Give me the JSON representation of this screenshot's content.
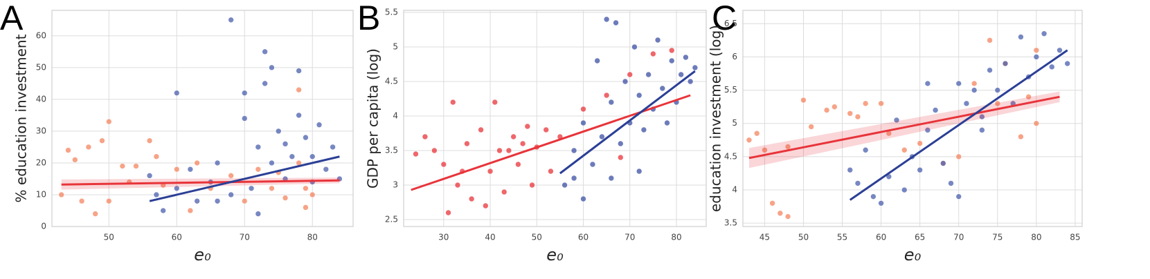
{
  "chart_data": [
    {
      "type": "scatter",
      "panel": "A",
      "xlabel": "e₀",
      "ylabel": "% education investment",
      "xlim": [
        41.6,
        86
      ],
      "xticks": [
        50,
        60,
        70,
        80
      ],
      "ylim": [
        0,
        68
      ],
      "yticks": [
        0,
        10,
        20,
        30,
        40,
        50,
        60
      ],
      "grid": true,
      "series": [
        {
          "color": "#f4845f",
          "x": [
            43,
            44,
            45,
            46,
            47,
            48,
            49,
            50,
            50,
            52,
            53,
            54,
            56,
            57,
            58,
            60,
            62,
            63,
            65,
            68,
            70,
            72,
            74,
            76,
            78,
            79,
            79,
            80,
            78,
            75
          ],
          "values": [
            10,
            24,
            21,
            8,
            25,
            4,
            27,
            33,
            8,
            19,
            14,
            19,
            27,
            22,
            13,
            18,
            5,
            20,
            12,
            16,
            8,
            18,
            12,
            9,
            43,
            6,
            12,
            10,
            20,
            17
          ]
        },
        {
          "color": "#4a5fae",
          "x": [
            56,
            57,
            58,
            60,
            60,
            62,
            63,
            65,
            66,
            68,
            68,
            70,
            70,
            71,
            72,
            73,
            73,
            74,
            74,
            75,
            76,
            77,
            78,
            78,
            79,
            80,
            81,
            82,
            83,
            84,
            66,
            72,
            76,
            80
          ],
          "values": [
            16,
            10,
            5,
            42,
            12,
            18,
            8,
            14,
            20,
            65,
            10,
            34,
            42,
            12,
            25,
            55,
            45,
            50,
            20,
            30,
            15,
            22,
            49,
            35,
            28,
            22,
            32,
            18,
            25,
            15,
            8,
            4,
            26,
            14
          ]
        }
      ],
      "fits": [
        {
          "color": "#e8343a",
          "x": [
            43,
            84
          ],
          "values": [
            13.2,
            14.5
          ],
          "lower": [
            11.6,
            13.6
          ],
          "upper": [
            14.8,
            15.4
          ]
        },
        {
          "color": "#2b3f96",
          "x": [
            56,
            84
          ],
          "values": [
            8,
            22
          ]
        }
      ]
    },
    {
      "type": "scatter",
      "panel": "B",
      "xlabel": "e₀",
      "ylabel": "GDP per capita (log)",
      "xlim": [
        21.4,
        86.4
      ],
      "xticks": [
        30,
        40,
        50,
        60,
        70,
        80
      ],
      "ylim": [
        2.4,
        5.53
      ],
      "yticks": [
        2.5,
        3.0,
        3.5,
        4.0,
        4.5,
        5.0,
        5.5
      ],
      "grid": true,
      "series": [
        {
          "color": "#e8343a",
          "x": [
            24,
            26,
            28,
            30,
            31,
            32,
            33,
            35,
            36,
            38,
            40,
            41,
            42,
            43,
            45,
            46,
            48,
            49,
            50,
            52,
            53,
            55,
            60,
            65,
            70,
            75,
            79,
            68,
            34,
            44,
            39,
            47
          ],
          "values": [
            3.45,
            3.7,
            3.5,
            3.3,
            2.6,
            4.2,
            3.0,
            3.6,
            2.8,
            3.8,
            3.2,
            4.2,
            3.5,
            2.9,
            3.7,
            3.3,
            3.85,
            3.0,
            3.55,
            3.8,
            3.2,
            3.7,
            4.1,
            4.3,
            4.6,
            4.9,
            4.95,
            3.4,
            3.2,
            3.5,
            2.7,
            3.6
          ]
        },
        {
          "color": "#3b4fa3",
          "x": [
            56,
            58,
            60,
            60,
            62,
            63,
            64,
            65,
            66,
            67,
            68,
            69,
            70,
            71,
            72,
            73,
            74,
            75,
            76,
            77,
            78,
            79,
            80,
            81,
            82,
            83,
            84,
            66,
            72,
            58
          ],
          "values": [
            3.0,
            3.5,
            2.8,
            3.9,
            3.3,
            4.8,
            3.7,
            5.4,
            4.2,
            5.35,
            3.6,
            4.5,
            3.9,
            5.0,
            4.3,
            3.8,
            4.6,
            4.1,
            5.1,
            4.4,
            3.9,
            4.8,
            4.2,
            4.6,
            4.85,
            4.5,
            4.7,
            3.1,
            3.2,
            3.1
          ]
        }
      ],
      "fits": [
        {
          "color": "#e8343a",
          "x": [
            23,
            83
          ],
          "values": [
            2.93,
            4.3
          ]
        },
        {
          "color": "#2b3f96",
          "x": [
            55,
            84
          ],
          "values": [
            3.17,
            4.65
          ]
        }
      ]
    },
    {
      "type": "scatter",
      "panel": "C",
      "xlabel": "e₀",
      "ylabel": "education investment (log)",
      "xlim": [
        42.2,
        85.9
      ],
      "xticks": [
        45,
        50,
        55,
        60,
        65,
        70,
        75,
        80,
        85
      ],
      "ylim": [
        3.45,
        6.7
      ],
      "yticks": [
        3.5,
        4.0,
        4.5,
        5.0,
        5.5,
        6.0,
        6.5
      ],
      "grid": true,
      "series": [
        {
          "color": "#f4845f",
          "x": [
            43,
            44,
            45,
            46,
            47,
            48,
            48,
            50,
            51,
            53,
            54,
            56,
            57,
            58,
            60,
            61,
            63,
            65,
            68,
            70,
            72,
            74,
            76,
            78,
            80,
            80,
            79,
            75
          ],
          "values": [
            4.75,
            4.85,
            4.6,
            3.8,
            3.65,
            3.6,
            4.65,
            5.35,
            4.95,
            5.2,
            5.25,
            5.15,
            5.1,
            5.3,
            5.3,
            4.85,
            4.6,
            4.7,
            4.4,
            4.5,
            5.6,
            6.25,
            5.9,
            4.8,
            5.0,
            6.1,
            5.4,
            5.3
          ]
        },
        {
          "color": "#4a5fae",
          "x": [
            56,
            57,
            58,
            59,
            60,
            61,
            62,
            63,
            64,
            65,
            66,
            67,
            68,
            69,
            70,
            70,
            71,
            72,
            73,
            74,
            75,
            76,
            77,
            78,
            79,
            80,
            81,
            82,
            83,
            84,
            73,
            66
          ],
          "values": [
            4.3,
            4.1,
            4.6,
            3.9,
            3.8,
            4.2,
            5.05,
            4.0,
            4.5,
            4.3,
            4.9,
            5.2,
            4.4,
            4.1,
            5.6,
            3.9,
            5.3,
            5.5,
            4.9,
            5.8,
            5.5,
            5.9,
            5.3,
            6.3,
            5.7,
            6.0,
            6.35,
            5.85,
            6.1,
            5.9,
            5.1,
            5.6
          ]
        }
      ],
      "fits": [
        {
          "color": "#e8343a",
          "x": [
            43,
            83
          ],
          "values": [
            4.48,
            5.4
          ],
          "lower": [
            4.33,
            5.32
          ],
          "upper": [
            4.63,
            5.48
          ]
        },
        {
          "color": "#2b3f96",
          "x": [
            56,
            84
          ],
          "values": [
            3.85,
            6.1
          ]
        }
      ]
    }
  ]
}
